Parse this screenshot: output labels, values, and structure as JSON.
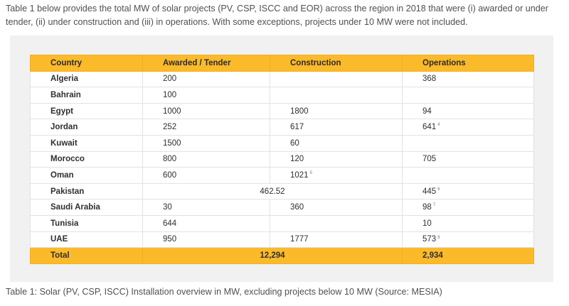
{
  "intro": "Table 1 below provides the total MW of solar projects (PV, CSP, ISCC and EOR) across the region in 2018 that were (i) awarded or under tender, (ii) under construction and (iii) in operations. With some exceptions, projects under 10 MW were not included.",
  "table": {
    "headers": [
      "Country",
      "Awarded / Tender",
      "Construction",
      "Operations"
    ],
    "rows": [
      {
        "country": "Algeria",
        "awarded": "200",
        "construction": "",
        "operations": "368"
      },
      {
        "country": "Bahrain",
        "awarded": "100",
        "construction": "",
        "operations": ""
      },
      {
        "country": "Egypt",
        "awarded": "1000",
        "construction": "1800",
        "operations": "94"
      },
      {
        "country": "Jordan",
        "awarded": "252",
        "construction": "617",
        "operations": "641",
        "operations_note": "4"
      },
      {
        "country": "Kuwait",
        "awarded": "1500",
        "construction": "60",
        "operations": ""
      },
      {
        "country": "Morocco",
        "awarded": "800",
        "construction": "120",
        "operations": "705"
      },
      {
        "country": "Oman",
        "awarded": "600",
        "construction": "1021",
        "construction_note": "5",
        "operations": ""
      },
      {
        "country": "Pakistan",
        "merged": "462.52",
        "operations": "445",
        "operations_note": "6"
      },
      {
        "country": "Saudi Arabia",
        "awarded": "30",
        "construction": "360",
        "operations": "98",
        "operations_note": "7"
      },
      {
        "country": "Tunisia",
        "awarded": "644",
        "construction": "",
        "operations": "10"
      },
      {
        "country": "UAE",
        "awarded": "950",
        "construction": "1777",
        "operations": "573",
        "operations_note": "8"
      }
    ],
    "total": {
      "label": "Total",
      "awarded_construction": "12,294",
      "operations": "2,934"
    }
  },
  "caption": "Table 1: Solar (PV, CSP, ISCC) Installation overview in MW, excluding projects below 10 MW  (Source: MESIA)"
}
